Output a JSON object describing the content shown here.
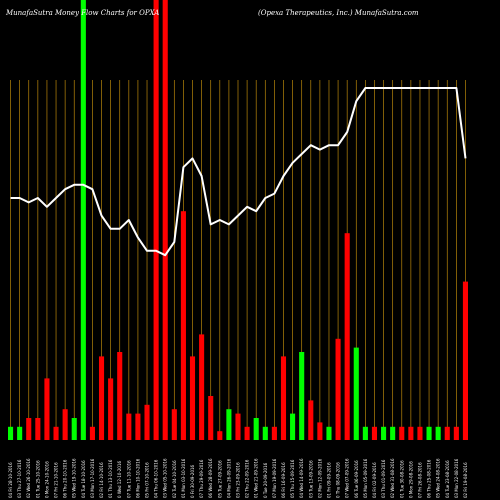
{
  "chart_data": {
    "type": "bar",
    "title_left": "MunafaSutra  Money Flow  Charts for OPXA",
    "title_right": "(Opexa  Therapeutics,  Inc.) MunafaSutra.com",
    "colors": {
      "background": "#000000",
      "grid": "#b8860b",
      "up": "#00ff00",
      "down": "#ff0000",
      "line": "#ffffff"
    },
    "grid": true,
    "ylim": [
      0,
      100
    ],
    "categories": [
      "04 Fri 28-10-2016",
      "03 Thu 27-10-2016",
      "02 Wed 26-10-2016",
      "01 Tue 25-10-2016",
      "0 Mon 24-10-2016",
      "07 Fri 21-10-2016",
      "06 Thu 20-10-2016",
      "05 Wed 19-10-2016",
      "04 Tue 18-10-2016",
      "03 Mon 17-10-2016",
      "02 Fri 14-10-2016",
      "01 Thu 13-10-2016",
      "0 Wed 12-10-2016",
      "07 Tue 11-10-2016",
      "06 Mon 10-10-2016",
      "05 Fri 07-10-2016",
      "04 Thu 06-10-2016",
      "03 Wed 05-10-2016",
      "02 Tue 04-10-2016",
      "01 Mon 03-10-2016",
      "0 Fri 30-09-2016",
      "07 Thu 29-09-2016",
      "06 Wed 28-09-2016",
      "05 Tue 27-09-2016",
      "04 Mon 26-09-2016",
      "03 Fri 23-09-2016",
      "02 Thu 22-09-2016",
      "01 Wed 21-09-2016",
      "0 Tue 20-09-2016",
      "07 Mon 19-09-2016",
      "06 Fri 16-09-2016",
      "05 Thu 15-09-2016",
      "04 Wed 14-09-2016",
      "03 Tue 13-09-2016",
      "02 Mon 12-09-2016",
      "01 Fri 09-09-2016",
      "0 Thu 08-09-2016",
      "07 Wed 07-09-2016",
      "06 Tue 06-09-2016",
      "05 Mon 05-09-2016",
      "04 Fri 02-09-2016",
      "03 Thu 01-09-2016",
      "02 Wed 31-08-2016",
      "01 Tue 30-08-2016",
      "0 Mon 29-08-2016",
      "07 Fri 26-08-2016",
      "06 Thu 25-08-2016",
      "05 Wed 24-08-2016",
      "04 Tue 23-08-2016",
      "03 Mon 22-08-2016",
      "02 Fri 19-08-2016"
    ],
    "bar_colors": [
      "green",
      "green",
      "red",
      "red",
      "red",
      "red",
      "red",
      "green",
      "green",
      "red",
      "red",
      "red",
      "red",
      "red",
      "red",
      "red",
      "red",
      "red",
      "red",
      "red",
      "red",
      "red",
      "red",
      "red",
      "green",
      "red",
      "red",
      "green",
      "green",
      "red",
      "red",
      "green",
      "green",
      "red",
      "red",
      "green",
      "red",
      "red",
      "green",
      "green",
      "red",
      "green",
      "green",
      "red",
      "red",
      "red",
      "green",
      "green",
      "red",
      "red",
      "red"
    ],
    "series": [
      {
        "values": [
          3,
          3,
          5,
          5,
          14,
          3,
          7,
          5,
          100,
          3,
          19,
          14,
          20,
          6,
          6,
          8,
          100,
          100,
          7,
          52,
          19,
          24,
          10,
          2,
          7,
          6,
          3,
          5,
          3,
          3,
          19,
          6,
          20,
          9,
          4,
          3,
          23,
          47,
          21,
          3,
          3,
          3,
          3,
          3,
          3,
          3,
          3,
          3,
          3,
          3,
          36
        ]
      },
      {
        "values": [
          55,
          55,
          54,
          55,
          53,
          55,
          57,
          58,
          58,
          57,
          51,
          48,
          48,
          50,
          46,
          43,
          43,
          42,
          45,
          62,
          64,
          60,
          49,
          50,
          49,
          51,
          53,
          52,
          55,
          56,
          60,
          63,
          65,
          67,
          66,
          67,
          67,
          70,
          77,
          80,
          80,
          80,
          80,
          80,
          80,
          80,
          80,
          80,
          80,
          80,
          64
        ]
      }
    ]
  }
}
